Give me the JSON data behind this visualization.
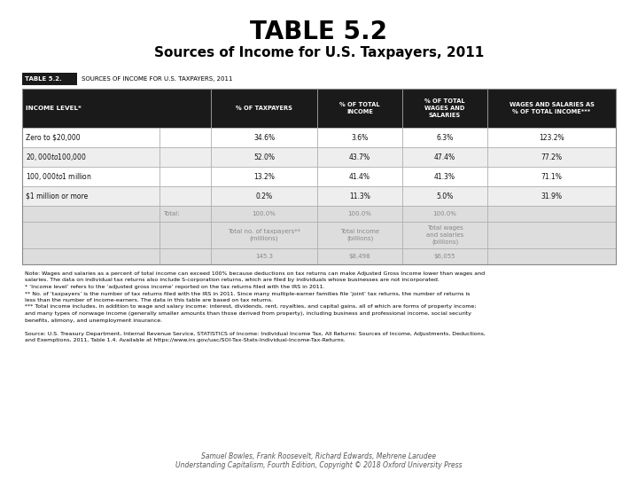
{
  "title": "TABLE 5.2",
  "subtitle": "Sources of Income for U.S. Taxpayers, 2011",
  "table_label": "TABLE 5.2.",
  "table_label_desc": "SOURCES OF INCOME FOR U.S. TAXPAYERS, 2011",
  "col_headers_row1": "INCOME LEVEL*",
  "col_headers": [
    "% OF TAXPAYERS",
    "% OF TOTAL\nINCOME",
    "% OF TOTAL\nWAGES AND\nSALARIES",
    "WAGES AND SALARIES AS\n% OF TOTAL INCOME***"
  ],
  "rows": [
    [
      "Zero to $20,000",
      "",
      "34.6%",
      "3.6%",
      "6.3%",
      "123.2%"
    ],
    [
      "$20,000 to $100,000",
      "",
      "52.0%",
      "43.7%",
      "47.4%",
      "77.2%"
    ],
    [
      "$100,000 to $1 million",
      "",
      "13.2%",
      "41.4%",
      "41.3%",
      "71.1%"
    ],
    [
      "$1 million or more",
      "",
      "0.2%",
      "11.3%",
      "5.0%",
      "31.9%"
    ],
    [
      "",
      "Total:",
      "100.0%",
      "100.0%",
      "100.0%",
      ""
    ],
    [
      "",
      "",
      "Total no. of taxpayers**\n(millions)",
      "Total income\n(billions)",
      "Total wages\nand salaries\n(billions)",
      ""
    ],
    [
      "",
      "",
      "145.3",
      "$8,498",
      "$6,055",
      ""
    ]
  ],
  "note_lines": [
    "Note: Wages and salaries as a percent of total income can exceed 100% because deductions on tax returns can make Adjusted Gross Income lower than wages and",
    "salaries. The data on individual tax returns also include S-corporation returns, which are filed by individuals whose businesses are not incorporated.",
    "* ‘Income level’ refers to the ‘adjusted gross income’ reported on the tax returns filed with the IRS in 2011.",
    "** No. of ‘taxpayers’ is the number of tax returns filed with the IRS in 2011. Since many multiple-earner families file ‘joint’ tax returns, the number of returns is",
    "less than the number of income-earners. The data in this table are based on tax returns.",
    "*** Total income includes, in addition to wage and salary income: interest, dividends, rent, royalties, and capital gains, all of which are forms of property income;",
    "and many types of nonwage income (generally smaller amounts than those derived from property), including business and professional income, social security",
    "benefits, alimony, and unemployment insurance."
  ],
  "source_lines": [
    "Source: U.S. Treasury Department, Internal Revenue Service, STATISTICS of Income: Individual Income Tax, All Returns: Sources of Income, Adjustments, Deductions,",
    "and Exemptions, 2011, Table 1.4. Available at https://www.irs.gov/uac/SOI-Tax-Stats-Individual-Income-Tax-Returns."
  ],
  "footer_line1": "Samuel Bowles, Frank Roosevelt, Richard Edwards, Mehrene Larudee",
  "footer_line2": "Understanding Capitalism, Fourth Edition, Copyright © 2018 Oxford University Press",
  "bg_color": "#ffffff",
  "header_bg": "#1a1a1a",
  "header_fg": "#ffffff",
  "row_colors": [
    "#ffffff",
    "#eeeeee",
    "#ffffff",
    "#eeeeee",
    "#dddddd",
    "#dddddd",
    "#dddddd"
  ],
  "total_color": "#aaaaaa",
  "border_color": "#999999",
  "label_box_bg": "#1a1a1a"
}
